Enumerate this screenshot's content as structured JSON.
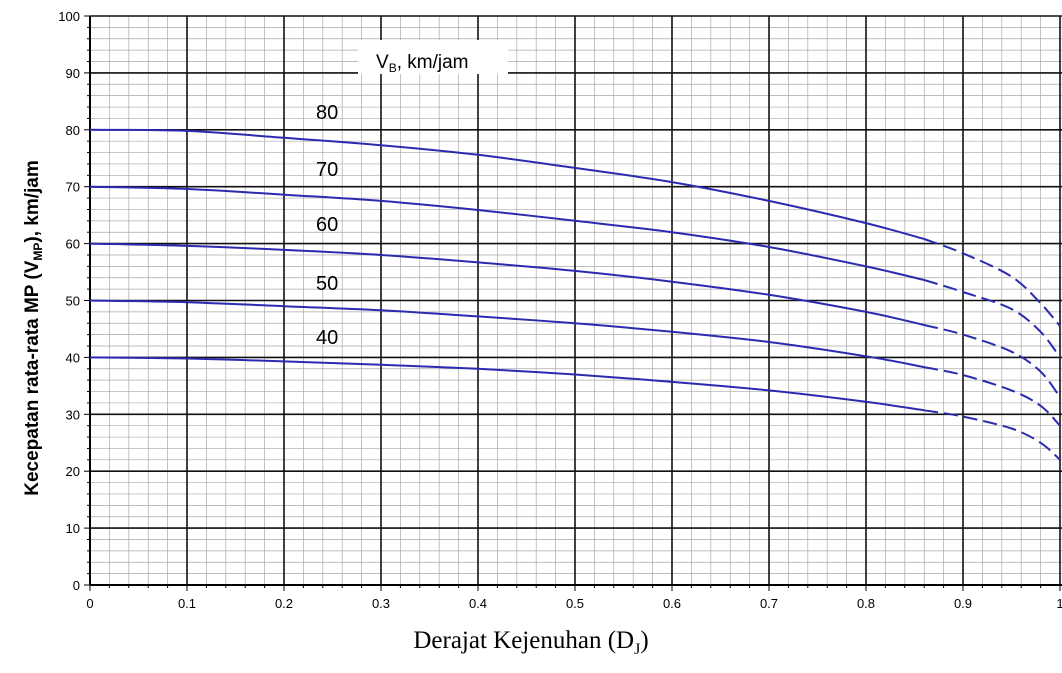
{
  "chart_data": {
    "type": "line",
    "xlabel_main": "Derajat Kejenuhan (D",
    "xlabel_sub": "J",
    "xlabel_close": ")",
    "ylabel_main": "Kecepatan rata-rata MP (V",
    "ylabel_sub": "MP",
    "ylabel_close": "), km/jam",
    "legend_title_main": "V",
    "legend_title_sub": "B",
    "legend_title_rest": ", km/jam",
    "xlim": [
      0,
      1.0
    ],
    "ylim": [
      0,
      100
    ],
    "x_ticks": [
      "0",
      "0.1",
      "0.2",
      "0.3",
      "0.4",
      "0.5",
      "0.6",
      "0.7",
      "0.8",
      "0.9",
      "1"
    ],
    "y_ticks": [
      "0",
      "10",
      "20",
      "30",
      "40",
      "50",
      "60",
      "70",
      "80",
      "90",
      "100"
    ],
    "grid": true,
    "line_color": "#2b2bb0",
    "series": [
      {
        "name": "80",
        "solid": [
          [
            0,
            80
          ],
          [
            0.1,
            79.8
          ],
          [
            0.2,
            78.6
          ],
          [
            0.3,
            77.3
          ],
          [
            0.4,
            75.6
          ],
          [
            0.5,
            73.3
          ],
          [
            0.6,
            70.8
          ],
          [
            0.7,
            67.5
          ],
          [
            0.8,
            63.6
          ],
          [
            0.86,
            60.8
          ]
        ],
        "dashed": [
          [
            0.86,
            60.8
          ],
          [
            0.9,
            58.3
          ],
          [
            0.95,
            54.2
          ],
          [
            0.98,
            49.5
          ],
          [
            1.0,
            45.5
          ]
        ]
      },
      {
        "name": "70",
        "solid": [
          [
            0,
            70
          ],
          [
            0.1,
            69.6
          ],
          [
            0.2,
            68.6
          ],
          [
            0.3,
            67.5
          ],
          [
            0.4,
            65.9
          ],
          [
            0.5,
            64.0
          ],
          [
            0.6,
            62.0
          ],
          [
            0.7,
            59.4
          ],
          [
            0.8,
            56.0
          ],
          [
            0.86,
            53.6
          ]
        ],
        "dashed": [
          [
            0.86,
            53.6
          ],
          [
            0.9,
            51.5
          ],
          [
            0.95,
            48.5
          ],
          [
            0.98,
            44.5
          ],
          [
            1.0,
            40
          ]
        ]
      },
      {
        "name": "60",
        "solid": [
          [
            0,
            60
          ],
          [
            0.1,
            59.6
          ],
          [
            0.2,
            58.9
          ],
          [
            0.3,
            58.0
          ],
          [
            0.4,
            56.7
          ],
          [
            0.5,
            55.2
          ],
          [
            0.6,
            53.3
          ],
          [
            0.7,
            51.0
          ],
          [
            0.8,
            48.0
          ],
          [
            0.86,
            45.7
          ]
        ],
        "dashed": [
          [
            0.86,
            45.7
          ],
          [
            0.9,
            44.0
          ],
          [
            0.95,
            41.0
          ],
          [
            0.98,
            37.5
          ],
          [
            1.0,
            33
          ]
        ]
      },
      {
        "name": "50",
        "solid": [
          [
            0,
            50
          ],
          [
            0.1,
            49.7
          ],
          [
            0.2,
            49.0
          ],
          [
            0.3,
            48.3
          ],
          [
            0.4,
            47.2
          ],
          [
            0.5,
            46.0
          ],
          [
            0.6,
            44.5
          ],
          [
            0.7,
            42.7
          ],
          [
            0.8,
            40.2
          ],
          [
            0.86,
            38.3
          ]
        ],
        "dashed": [
          [
            0.86,
            38.3
          ],
          [
            0.9,
            36.9
          ],
          [
            0.95,
            34.2
          ],
          [
            0.98,
            31.5
          ],
          [
            1.0,
            28
          ]
        ]
      },
      {
        "name": "40",
        "solid": [
          [
            0,
            40
          ],
          [
            0.1,
            39.8
          ],
          [
            0.2,
            39.3
          ],
          [
            0.3,
            38.7
          ],
          [
            0.4,
            38.0
          ],
          [
            0.5,
            37.0
          ],
          [
            0.6,
            35.7
          ],
          [
            0.7,
            34.2
          ],
          [
            0.8,
            32.2
          ],
          [
            0.86,
            30.7
          ]
        ],
        "dashed": [
          [
            0.86,
            30.7
          ],
          [
            0.9,
            29.6
          ],
          [
            0.95,
            27.5
          ],
          [
            0.98,
            25.0
          ],
          [
            1.0,
            22
          ]
        ]
      }
    ]
  }
}
